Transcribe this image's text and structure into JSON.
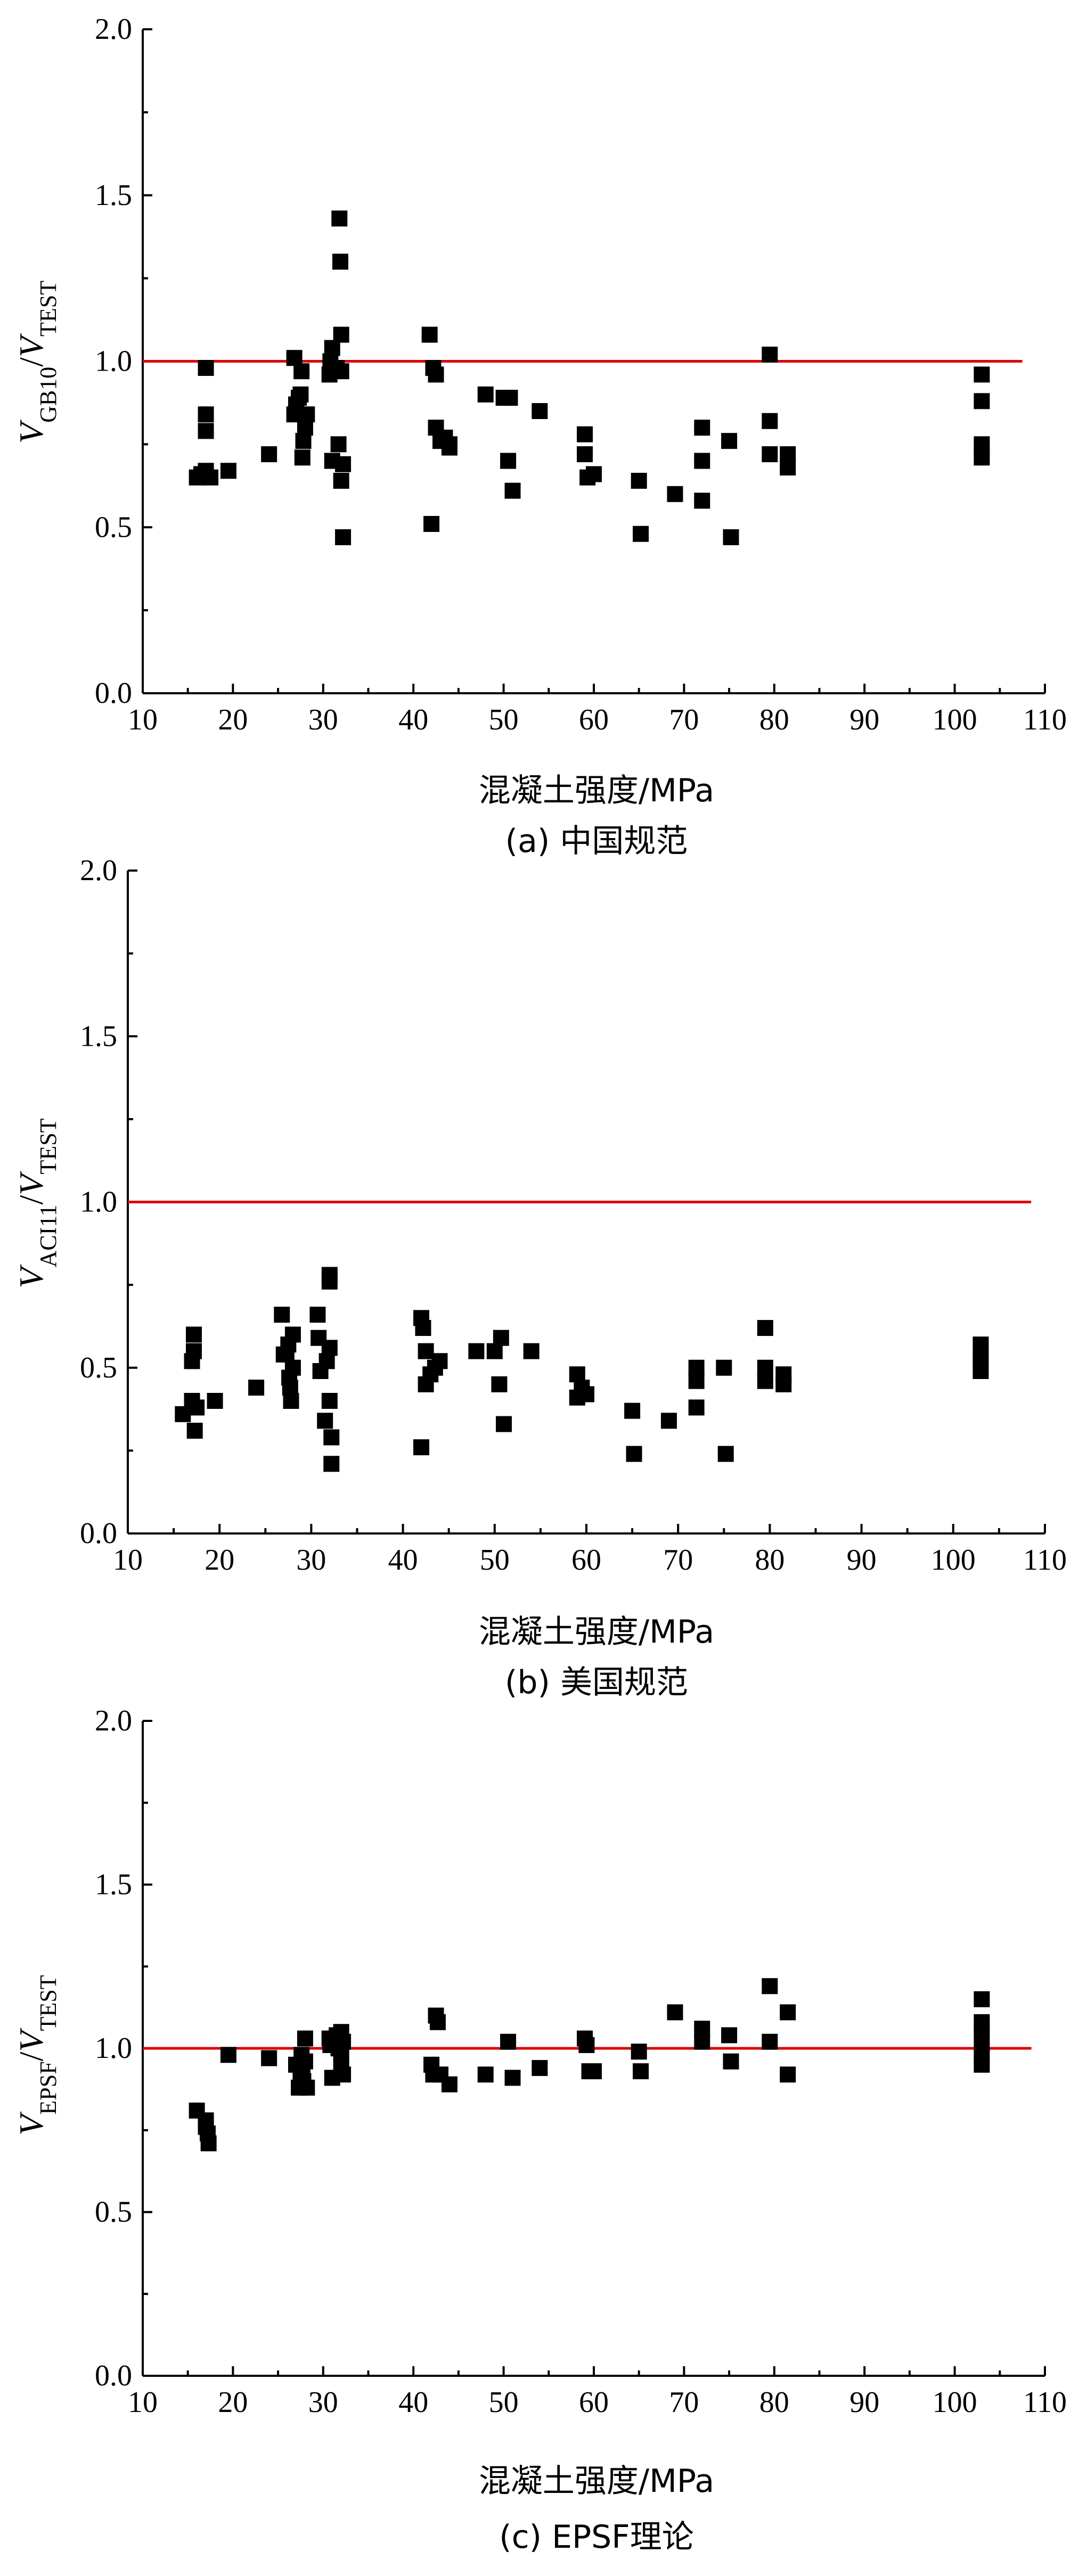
{
  "chart_data": [
    {
      "type": "scatter",
      "caption": "(a) 中国规范",
      "xlabel": "混凝土强度/MPa",
      "ylabel": {
        "num_var": "V",
        "num_sub": "GB10",
        "sep": "/",
        "den_var": "V",
        "den_sub": "TEST"
      },
      "xlim": [
        10,
        110
      ],
      "ylim": [
        0.0,
        2.0
      ],
      "xticks": [
        "10",
        "20",
        "30",
        "40",
        "50",
        "60",
        "70",
        "80",
        "90",
        "100",
        "110"
      ],
      "yticks": [
        "0.0",
        "0.5",
        "1.0",
        "1.5",
        "2.0"
      ],
      "reference_line": {
        "y": 1.0,
        "x_end": 107.5,
        "color": "#dd0000"
      },
      "x": [
        16,
        16.5,
        17,
        17,
        17,
        17,
        17.5,
        19.5,
        24,
        26.8,
        26.8,
        27,
        27.3,
        27.5,
        27.6,
        27.7,
        27.8,
        28,
        28.2,
        30.7,
        30.8,
        31,
        31,
        31.5,
        31.7,
        31.8,
        31.9,
        32,
        32,
        32,
        32.2,
        32.2,
        41.8,
        42,
        42.2,
        42.5,
        42.5,
        43,
        43.5,
        44,
        44,
        48,
        50,
        50.5,
        50.7,
        51,
        54,
        59,
        59,
        59.3,
        60,
        65,
        65.2,
        69,
        72,
        72,
        72,
        75,
        75.2,
        79.5,
        79.5,
        79.5,
        81.5,
        81.5,
        103,
        103,
        103,
        103,
        103
      ],
      "y": [
        0.65,
        0.66,
        0.67,
        0.79,
        0.84,
        0.98,
        0.65,
        0.67,
        0.72,
        1.01,
        0.84,
        0.87,
        0.89,
        0.9,
        0.97,
        0.71,
        0.76,
        0.8,
        0.84,
        0.96,
        1.0,
        1.04,
        0.7,
        0.98,
        0.75,
        1.43,
        1.3,
        1.08,
        0.97,
        0.64,
        0.47,
        0.69,
        1.08,
        0.51,
        0.98,
        0.96,
        0.8,
        0.76,
        0.77,
        0.75,
        0.74,
        0.9,
        0.89,
        0.7,
        0.89,
        0.61,
        0.85,
        0.78,
        0.72,
        0.65,
        0.66,
        0.64,
        0.48,
        0.6,
        0.8,
        0.7,
        0.58,
        0.76,
        0.47,
        1.02,
        0.82,
        0.72,
        0.72,
        0.68,
        0.96,
        0.88,
        0.75,
        0.73,
        0.71
      ]
    },
    {
      "type": "scatter",
      "caption": "(b) 美国规范",
      "xlabel": "混凝土强度/MPa",
      "ylabel": {
        "num_var": "V",
        "num_sub": "ACI11",
        "sep": "/",
        "den_var": "V",
        "den_sub": "TEST"
      },
      "xlim": [
        10,
        110
      ],
      "ylim": [
        0.0,
        2.0
      ],
      "xticks": [
        "10",
        "20",
        "30",
        "40",
        "50",
        "60",
        "70",
        "80",
        "90",
        "100",
        "110"
      ],
      "yticks": [
        "0.0",
        "0.5",
        "1.0",
        "1.5",
        "2.0"
      ],
      "reference_line": {
        "y": 1.0,
        "x_end": 108.5,
        "color": "#dd0000"
      },
      "x": [
        16,
        17,
        17,
        17.2,
        17.2,
        17.3,
        17.5,
        19.5,
        24,
        26.8,
        27,
        27.3,
        27.5,
        27.6,
        27.7,
        27.8,
        28,
        28,
        30.7,
        30.8,
        31,
        31.5,
        31.7,
        32,
        32,
        32,
        32,
        32.2,
        32.2,
        42,
        42,
        42.2,
        42.5,
        42.5,
        43,
        43.5,
        44,
        48,
        50,
        50.5,
        50.7,
        51,
        54,
        59,
        59,
        59.5,
        60,
        65,
        65.2,
        69,
        72,
        72,
        72,
        75,
        75.2,
        79.5,
        79.5,
        79.5,
        81.5,
        81.5,
        103,
        103,
        103,
        103
      ],
      "y": [
        0.36,
        0.4,
        0.52,
        0.55,
        0.6,
        0.31,
        0.38,
        0.4,
        0.44,
        0.66,
        0.54,
        0.54,
        0.57,
        0.47,
        0.44,
        0.4,
        0.6,
        0.5,
        0.66,
        0.59,
        0.49,
        0.34,
        0.52,
        0.78,
        0.76,
        0.56,
        0.4,
        0.29,
        0.21,
        0.65,
        0.26,
        0.62,
        0.55,
        0.45,
        0.48,
        0.5,
        0.52,
        0.55,
        0.55,
        0.45,
        0.59,
        0.33,
        0.55,
        0.48,
        0.41,
        0.44,
        0.42,
        0.37,
        0.24,
        0.34,
        0.5,
        0.46,
        0.38,
        0.5,
        0.24,
        0.62,
        0.5,
        0.46,
        0.48,
        0.45,
        0.57,
        0.54,
        0.52,
        0.49
      ]
    },
    {
      "type": "scatter",
      "caption": "(c) EPSF理论",
      "xlabel": "混凝土强度/MPa",
      "ylabel": {
        "num_var": "V",
        "num_sub": "EPSF",
        "sep": "/",
        "den_var": "V",
        "den_sub": "TEST"
      },
      "xlim": [
        10,
        110
      ],
      "ylim": [
        0.0,
        2.0
      ],
      "xticks": [
        "10",
        "20",
        "30",
        "40",
        "50",
        "60",
        "70",
        "80",
        "90",
        "100",
        "110"
      ],
      "yticks": [
        "0.0",
        "0.5",
        "1.0",
        "1.5",
        "2.0"
      ],
      "reference_line": {
        "y": 1.0,
        "x_end": 108.5,
        "color": "#dd0000"
      },
      "x": [
        16,
        17,
        17,
        17.2,
        17.3,
        19.5,
        24,
        27,
        27.3,
        27.5,
        27.6,
        27.7,
        27.8,
        28,
        28,
        28.2,
        30.7,
        30.8,
        31,
        31.5,
        31.7,
        32,
        32,
        32,
        32.2,
        32.2,
        42,
        42.2,
        42.5,
        42.7,
        43,
        44,
        48,
        50.5,
        51,
        54,
        59,
        59.2,
        59.5,
        60,
        65,
        65.2,
        69,
        72,
        72,
        75,
        75.2,
        79.5,
        79.5,
        81.5,
        81.5,
        103,
        103,
        103,
        103,
        103,
        103
      ],
      "y": [
        0.81,
        0.78,
        0.76,
        0.74,
        0.71,
        0.98,
        0.97,
        0.95,
        0.88,
        0.92,
        0.98,
        0.94,
        0.9,
        1.03,
        0.96,
        0.88,
        1.03,
        1.01,
        0.91,
        1.04,
        1.0,
        1.05,
        0.98,
        0.95,
        1.02,
        0.92,
        0.95,
        0.92,
        1.1,
        1.08,
        0.92,
        0.89,
        0.92,
        1.02,
        0.91,
        0.94,
        1.03,
        1.01,
        0.93,
        0.93,
        0.99,
        0.93,
        1.11,
        1.06,
        1.02,
        1.04,
        0.96,
        1.19,
        1.02,
        1.11,
        0.92,
        1.15,
        1.08,
        1.05,
        1.01,
        0.98,
        0.95
      ]
    }
  ]
}
